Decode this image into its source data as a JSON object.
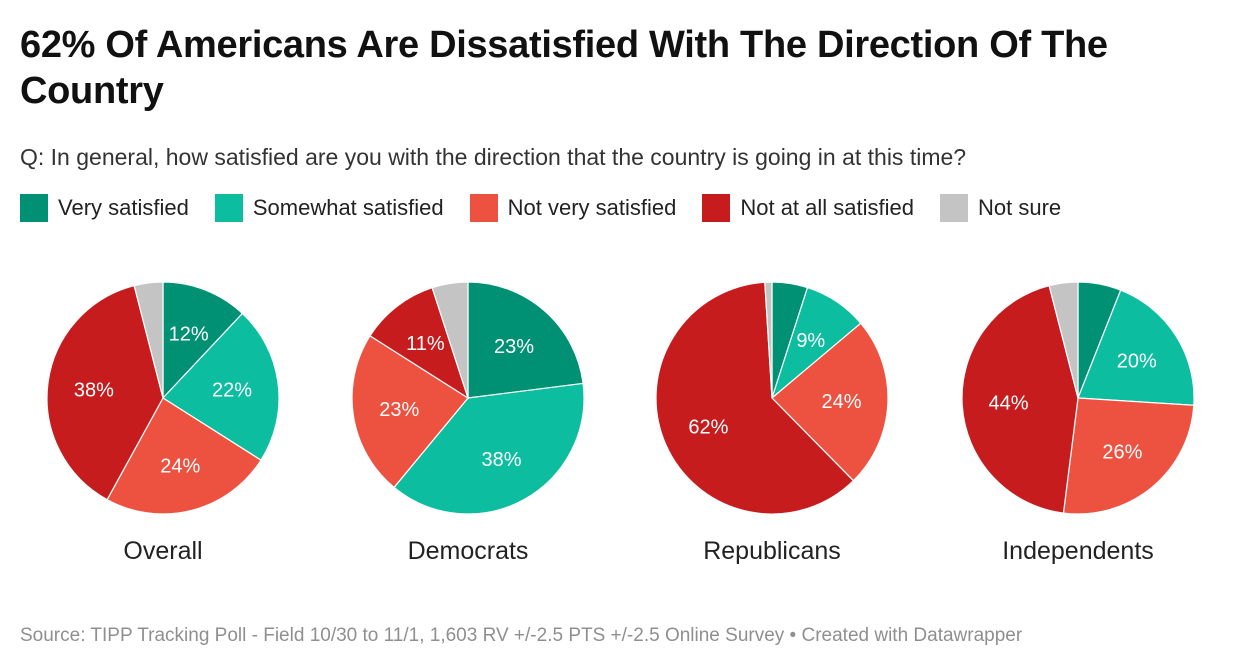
{
  "title": "62% Of Americans Are Dissatisfied With The Direction Of The Country",
  "subtitle": "Q: In general, how satisfied are you with the direction that the country is going in at this time?",
  "footer": "Source: TIPP Tracking Poll - Field 10/30 to 11/1, 1,603 RV +/-2.5 PTS +/-2.5 Online Survey • Created with Datawrapper",
  "chart_data": {
    "type": "pie",
    "title": "62% Of Americans Are Dissatisfied With The Direction Of The Country",
    "subtitle": "Q: In general, how satisfied are you with the direction that the country is going in at this time?",
    "legend_position": "top-left",
    "categories": [
      "Very satisfied",
      "Somewhat satisfied",
      "Not very satisfied",
      "Not at all satisfied",
      "Not sure"
    ],
    "colors": [
      "#009175",
      "#0dbda0",
      "#ed5140",
      "#c61c1e",
      "#c4c4c4"
    ],
    "series": [
      {
        "name": "Overall",
        "values": [
          12,
          22,
          24,
          38,
          4
        ],
        "labels": [
          "12%",
          "22%",
          "24%",
          "38%",
          ""
        ]
      },
      {
        "name": "Democrats",
        "values": [
          23,
          38,
          23,
          11,
          5
        ],
        "labels": [
          "23%",
          "38%",
          "23%",
          "11%",
          ""
        ]
      },
      {
        "name": "Republicans",
        "values": [
          5,
          9,
          24,
          62,
          1
        ],
        "labels": [
          "",
          "9%",
          "24%",
          "62%",
          ""
        ]
      },
      {
        "name": "Independents",
        "values": [
          6,
          20,
          26,
          44,
          4
        ],
        "labels": [
          "",
          "20%",
          "26%",
          "44%",
          ""
        ]
      }
    ]
  }
}
